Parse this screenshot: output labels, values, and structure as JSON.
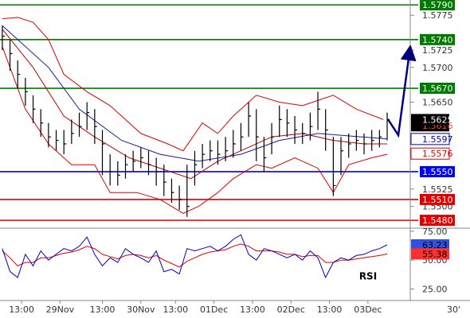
{
  "chart_data": [
    {
      "type": "ohlc",
      "x": [
        0,
        1,
        2,
        3,
        4,
        5,
        6,
        7,
        8,
        9,
        10,
        11,
        12,
        13,
        14,
        15,
        16,
        17,
        18,
        19,
        20,
        21,
        22,
        23,
        24,
        25,
        26,
        27,
        28,
        29,
        30,
        31,
        32,
        33,
        34,
        35,
        36,
        37,
        38,
        39,
        40,
        41,
        42,
        43,
        44,
        45,
        46,
        47,
        48,
        49,
        50
      ],
      "high": [
        1.576,
        1.574,
        1.571,
        1.5685,
        1.566,
        1.564,
        1.562,
        1.561,
        1.561,
        1.5625,
        1.5635,
        1.565,
        1.564,
        1.561,
        1.5575,
        1.5565,
        1.5575,
        1.558,
        1.5585,
        1.558,
        1.557,
        1.556,
        1.554,
        1.553,
        1.556,
        1.558,
        1.559,
        1.5595,
        1.5595,
        1.56,
        1.561,
        1.562,
        1.565,
        1.564,
        1.56,
        1.562,
        1.5645,
        1.564,
        1.563,
        1.562,
        1.5635,
        1.5665,
        1.564,
        1.56,
        1.56,
        1.5605,
        1.561,
        1.5605,
        1.561,
        1.561,
        1.5635
      ],
      "low": [
        1.5725,
        1.5695,
        1.567,
        1.5645,
        1.562,
        1.56,
        1.5585,
        1.558,
        1.5575,
        1.559,
        1.56,
        1.561,
        1.559,
        1.5545,
        1.553,
        1.553,
        1.554,
        1.555,
        1.5555,
        1.5545,
        1.553,
        1.5515,
        1.5505,
        1.5495,
        1.5485,
        1.553,
        1.5555,
        1.5565,
        1.556,
        1.5565,
        1.557,
        1.558,
        1.56,
        1.5565,
        1.555,
        1.5575,
        1.56,
        1.56,
        1.559,
        1.559,
        1.5595,
        1.561,
        1.558,
        1.5515,
        1.5545,
        1.557,
        1.558,
        1.5575,
        1.558,
        1.5585,
        1.5595
      ],
      "close": [
        1.5745,
        1.572,
        1.569,
        1.5665,
        1.564,
        1.562,
        1.56,
        1.5595,
        1.559,
        1.5605,
        1.5615,
        1.5635,
        1.5615,
        1.559,
        1.555,
        1.5545,
        1.556,
        1.5565,
        1.557,
        1.556,
        1.555,
        1.5535,
        1.552,
        1.551,
        1.55,
        1.556,
        1.5575,
        1.558,
        1.5575,
        1.558,
        1.559,
        1.56,
        1.563,
        1.56,
        1.557,
        1.56,
        1.5625,
        1.562,
        1.561,
        1.5605,
        1.5615,
        1.564,
        1.561,
        1.553,
        1.558,
        1.559,
        1.5595,
        1.559,
        1.5595,
        1.56,
        1.5625
      ],
      "color": "#000000",
      "lines": [
        {
          "color": "#e00000",
          "x": [
            0,
            2,
            4,
            6,
            8,
            11,
            14,
            18,
            21.5,
            23.5,
            26,
            28,
            30,
            33,
            36,
            39,
            43,
            46,
            49.5
          ],
          "values": [
            1.577,
            1.5772,
            1.5765,
            1.574,
            1.569,
            1.5665,
            1.5645,
            1.5605,
            1.559,
            1.558,
            1.562,
            1.5605,
            1.563,
            1.566,
            1.565,
            1.5645,
            1.566,
            1.564,
            1.5625
          ]
        },
        {
          "color": "#e00000",
          "x": [
            0,
            3,
            6,
            9,
            12,
            14,
            17.5,
            20.5,
            23.5,
            25.5,
            28,
            30,
            33,
            35,
            38,
            41,
            43,
            45,
            48,
            50
          ],
          "values": [
            1.573,
            1.564,
            1.559,
            1.556,
            1.556,
            1.552,
            1.552,
            1.551,
            1.549,
            1.55,
            1.552,
            1.554,
            1.556,
            1.5555,
            1.557,
            1.5555,
            1.552,
            1.556,
            1.557,
            1.5575
          ]
        },
        {
          "color": "#c00000",
          "x": [
            0,
            4,
            8,
            12,
            16.5,
            20.5,
            24.5,
            28,
            31,
            35,
            39,
            43,
            47,
            50
          ],
          "values": [
            1.5755,
            1.57,
            1.563,
            1.56,
            1.557,
            1.5555,
            1.554,
            1.5565,
            1.558,
            1.56,
            1.5605,
            1.5595,
            1.559,
            1.559
          ]
        },
        {
          "color": "#1a1aa0",
          "x": [
            0,
            6,
            10,
            15.5,
            20.5,
            25.5,
            31,
            36,
            41,
            50
          ],
          "values": [
            1.576,
            1.57,
            1.564,
            1.5595,
            1.5575,
            1.5565,
            1.5575,
            1.5595,
            1.5605,
            1.5597
          ]
        }
      ],
      "levels": [
        {
          "value": 1.579,
          "label": "1.5790",
          "color": "#007a00"
        },
        {
          "value": 1.574,
          "label": "1.5740",
          "color": "#007a00"
        },
        {
          "value": 1.567,
          "label": "1.5670",
          "color": "#007a00"
        },
        {
          "value": 1.555,
          "label": "1.5550",
          "color": "#0000ff"
        },
        {
          "value": 1.551,
          "label": "1.5510",
          "color": "#e00000"
        },
        {
          "value": 1.548,
          "label": "1.5480",
          "color": "#e00000"
        }
      ],
      "price_tags": [
        {
          "value": 1.5616,
          "background": "#000000",
          "color": "#ff4040"
        },
        {
          "value": 1.5625,
          "background": "#000000",
          "color": "#ffffff"
        },
        {
          "value": 1.5597,
          "background": "#ffffff",
          "color": "#0000c0"
        },
        {
          "value": 1.5576,
          "background": "#ffffff",
          "color": "#e00000"
        }
      ],
      "xlim": [
        -0.3,
        53
      ],
      "ylim": [
        1.5471,
        1.5797
      ],
      "yticks": [
        1.5775,
        1.5725,
        {
          "value": 1.57,
          "label": "1.5700"
        },
        {
          "value": 1.565,
          "label": "1.5650"
        },
        1.5525,
        {
          "value": 1.55,
          "label": "1.5500"
        }
      ],
      "xticks": [
        {
          "value": 2.5,
          "label": "13:00"
        },
        {
          "value": 7.5,
          "label": "29Nov"
        },
        {
          "value": 13,
          "label": "13:00"
        },
        {
          "value": 18,
          "label": "30Nov"
        },
        {
          "value": 22.5,
          "label": "13:00"
        },
        {
          "value": 27.5,
          "label": "01Dec"
        },
        {
          "value": 32.5,
          "label": "13:00"
        },
        {
          "value": 37.5,
          "label": "02Dec"
        },
        {
          "value": 42.5,
          "label": "13:00"
        },
        {
          "value": 47.5,
          "label": "03Dec"
        }
      ],
      "interval": "30'"
    },
    {
      "type": "line",
      "title": "RSI",
      "x": [
        0,
        1,
        2,
        3,
        4,
        5,
        6,
        7,
        8,
        9,
        10,
        11,
        12,
        13,
        14,
        15,
        16,
        17,
        18,
        19,
        20,
        21,
        22,
        23,
        24,
        25,
        26,
        27,
        28,
        29,
        30,
        31,
        32,
        33,
        34,
        35,
        36,
        37,
        38,
        39,
        40,
        41,
        42,
        43,
        44,
        45,
        46,
        47,
        48,
        49,
        50
      ],
      "series": [
        {
          "color": "#0000c0",
          "values": [
            60,
            40,
            35,
            55,
            45,
            58,
            50,
            55,
            60,
            58,
            62,
            70,
            55,
            45,
            52,
            48,
            60,
            55,
            52,
            48,
            58,
            40,
            42,
            38,
            60,
            58,
            60,
            62,
            58,
            62,
            68,
            72,
            55,
            50,
            60,
            58,
            55,
            52,
            55,
            50,
            58,
            52,
            35,
            48,
            52,
            50,
            54,
            55,
            58,
            60,
            63.23
          ]
        },
        {
          "color": "#e00000",
          "values": [
            58,
            52,
            45,
            48,
            48,
            52,
            52,
            54,
            56,
            57,
            59,
            62,
            60,
            55,
            53,
            51,
            54,
            55,
            54,
            52,
            54,
            50,
            47,
            44,
            49,
            52,
            55,
            57,
            58,
            59,
            62,
            64,
            62,
            58,
            58,
            58,
            57,
            55,
            55,
            53,
            54,
            54,
            48,
            48,
            50,
            50,
            51,
            52,
            53,
            54,
            55.38
          ]
        }
      ],
      "value_tags": [
        {
          "value": 63.23,
          "background": "#3050e0",
          "color": "#000000"
        },
        {
          "value": 55.38,
          "background": "#ff3030",
          "color": "#000000"
        }
      ],
      "xlim": [
        -0.3,
        53
      ],
      "ylim": [
        15,
        77
      ],
      "yticks": [
        {
          "value": 75,
          "label": "75.00"
        },
        {
          "value": 50,
          "label": "50.00"
        },
        {
          "value": 25,
          "label": "25.00"
        }
      ]
    }
  ]
}
